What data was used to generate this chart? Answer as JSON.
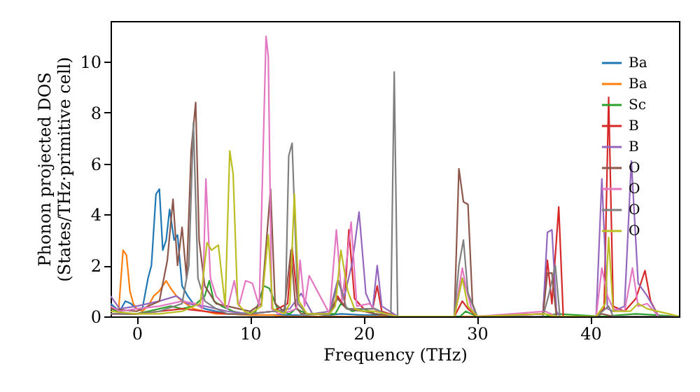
{
  "chart_data": {
    "type": "line",
    "xlabel": "Frequency (THz)",
    "ylabel": "Phonon projected DOS\n(States/THz·primitive cell)",
    "xlim": [
      -2.3,
      47.8
    ],
    "ylim": [
      0,
      11.6
    ],
    "xticks": [
      0,
      10,
      20,
      30,
      40
    ],
    "yticks": [
      0,
      2,
      4,
      6,
      8,
      10
    ],
    "grid": false,
    "legend": "top right",
    "marker": "none",
    "line_style": "solid",
    "series": [
      {
        "name": "Ba",
        "color": "#1f77b4",
        "x": [
          -2.3,
          -1.5,
          -1,
          -0.5,
          0,
          0.5,
          1,
          1.3,
          1.7,
          2.0,
          2.3,
          2.6,
          2.9,
          3.3,
          3.6,
          4,
          4.5,
          5,
          6,
          7,
          8,
          10,
          12,
          14,
          16,
          18,
          20,
          22,
          23
        ],
        "values": [
          0.5,
          0.2,
          0.6,
          0.5,
          0.3,
          0.3,
          1.5,
          2.0,
          4.8,
          5.0,
          2.6,
          3.0,
          4.2,
          3.0,
          3.2,
          1.2,
          0.8,
          0.5,
          0.3,
          0.2,
          0.1,
          0.05,
          0.05,
          0.05,
          0,
          0.1,
          0.05,
          0.05,
          0
        ]
      },
      {
        "name": "Ba",
        "color": "#ff7f0e",
        "x": [
          -2.3,
          -1.6,
          -1.2,
          -0.9,
          -0.6,
          -0.3,
          0,
          0.5,
          1,
          1.5,
          2,
          2.6,
          3,
          3.5,
          4,
          5,
          6,
          7,
          8,
          10,
          12,
          13,
          47.8
        ],
        "values": [
          0.4,
          0.2,
          2.6,
          2.4,
          1.0,
          0.5,
          0.3,
          0.2,
          0.4,
          0.8,
          1.0,
          1.4,
          1.1,
          0.8,
          0.6,
          0.3,
          0.2,
          0.1,
          0.1,
          0.05,
          0.05,
          0,
          0
        ]
      },
      {
        "name": "Sc",
        "color": "#2ca02c",
        "x": [
          -2.3,
          -1,
          0,
          1,
          2,
          3,
          4,
          5,
          5.5,
          6,
          6.4,
          6.8,
          7.5,
          8.5,
          9.5,
          10.5,
          11.2,
          11.7,
          12.5,
          13.5,
          14,
          15,
          17.5,
          18,
          19,
          20,
          21,
          23,
          28.5,
          29,
          30,
          36,
          37,
          41,
          44,
          47.8
        ],
        "values": [
          0.3,
          0.1,
          0.1,
          0.2,
          0.3,
          0.4,
          0.3,
          0.4,
          0.6,
          0.8,
          1.4,
          0.6,
          0.4,
          0.2,
          0.1,
          0.2,
          1.2,
          1.1,
          0.2,
          0.1,
          0.3,
          0.1,
          0.1,
          0.5,
          0.2,
          0.3,
          0.1,
          0,
          0,
          0.2,
          0,
          0,
          0.1,
          0,
          0.1,
          0
        ]
      },
      {
        "name": "B",
        "color": "#d62728",
        "x": [
          -2.3,
          0,
          2,
          4,
          6,
          8,
          10,
          12,
          13.3,
          13.7,
          14.2,
          15,
          17,
          17.7,
          18.3,
          18.7,
          19.2,
          20,
          20.8,
          21.2,
          21.6,
          23,
          28,
          28.7,
          29.2,
          30,
          35.8,
          36.2,
          36.6,
          37.2,
          37.6,
          40.5,
          41.2,
          41.6,
          42,
          43,
          44,
          44.8,
          45.3,
          46,
          47.8
        ],
        "values": [
          0.1,
          0.1,
          0.2,
          0.3,
          0.2,
          0.1,
          0.1,
          0.2,
          0.5,
          2.7,
          0.5,
          0.1,
          0.1,
          0.8,
          0.4,
          3.4,
          0.7,
          0.3,
          0.3,
          1.2,
          0.2,
          0,
          0,
          0.6,
          0.3,
          0,
          0.1,
          2.2,
          0.5,
          4.3,
          0,
          0,
          0.3,
          8.6,
          0.4,
          0.2,
          0.7,
          1.8,
          0.6,
          0,
          0
        ]
      },
      {
        "name": "B",
        "color": "#9467bd",
        "x": [
          -2.3,
          -1.5,
          0,
          2,
          3.5,
          4.5,
          6,
          8,
          10,
          12,
          13.5,
          14.5,
          15.5,
          17,
          17.7,
          18.3,
          19,
          19.6,
          20.2,
          20.8,
          21.2,
          21.6,
          23,
          28,
          28.7,
          29.3,
          30,
          35.8,
          36.2,
          36.6,
          37,
          37.3,
          40.5,
          41,
          41.5,
          42,
          43,
          43.6,
          44.2,
          45,
          46,
          47.8
        ],
        "values": [
          0.8,
          0.3,
          0.4,
          0.6,
          0.8,
          0.5,
          0.4,
          0.2,
          0.1,
          0.2,
          0.3,
          0.9,
          0.1,
          0.2,
          1.4,
          0.8,
          2.1,
          4.1,
          0.9,
          0.3,
          2.0,
          0.4,
          0,
          0,
          1.5,
          0.8,
          0,
          0,
          3.3,
          3.4,
          0.2,
          0,
          0,
          5.4,
          0.3,
          0.2,
          0.4,
          6.1,
          1.3,
          0.8,
          0,
          0
        ]
      },
      {
        "name": "O",
        "color": "#8c564b",
        "x": [
          -2.3,
          0,
          1,
          2,
          2.7,
          3.2,
          3.6,
          4.0,
          4.4,
          4.8,
          5.2,
          5.5,
          6,
          7,
          8,
          9,
          10,
          11,
          11.8,
          12.2,
          13,
          13.6,
          14,
          14.5,
          17,
          17.7,
          18.5,
          20,
          21,
          23,
          28,
          28.4,
          28.8,
          29.2,
          29.6,
          30,
          35.8,
          36.2,
          36.6,
          37,
          40.5,
          41,
          42,
          44,
          47.8
        ],
        "values": [
          0.3,
          0.2,
          0.4,
          0.6,
          2.2,
          4.6,
          2.0,
          3.5,
          1.5,
          6.5,
          8.4,
          3.0,
          1.2,
          0.5,
          0.4,
          0.3,
          0.2,
          0.5,
          5.0,
          0.5,
          0.2,
          2.6,
          0.4,
          0.1,
          0.1,
          0.7,
          0.3,
          0.2,
          0.1,
          0,
          0,
          5.8,
          4.5,
          4.4,
          0.5,
          0,
          0,
          1.7,
          1.7,
          0,
          0,
          0.1,
          0,
          0,
          0
        ]
      },
      {
        "name": "O",
        "color": "#e377c2",
        "x": [
          -2.3,
          -1.5,
          0,
          2,
          4,
          5.2,
          5.8,
          6.1,
          6.5,
          7,
          8,
          8.6,
          9,
          9.6,
          10.2,
          10.8,
          11.4,
          11.6,
          11.9,
          12.5,
          13.5,
          14.1,
          14.4,
          14.8,
          15.2,
          17,
          17.6,
          18.1,
          18.9,
          19.4,
          20.5,
          21.2,
          22,
          23,
          28,
          28.7,
          29.1,
          29.5,
          30,
          36,
          37,
          40.5,
          41,
          41.5,
          42,
          43,
          43.7,
          44.2,
          45,
          46,
          47.8
        ],
        "values": [
          0.4,
          0.2,
          0.3,
          0.4,
          0.6,
          0.5,
          0.3,
          5.4,
          1.5,
          0.8,
          0.3,
          1.4,
          0.4,
          1.4,
          1.3,
          0.4,
          11.0,
          10.2,
          0.3,
          0.1,
          0.2,
          0.3,
          2.2,
          0.4,
          1.6,
          0.1,
          3.4,
          0.6,
          3.7,
          0.4,
          0.5,
          0.2,
          0.1,
          0,
          0,
          1.9,
          1.0,
          0.3,
          0,
          0.2,
          0,
          0,
          1.9,
          0.8,
          0.3,
          0.2,
          1.9,
          0.4,
          0.5,
          0,
          0
        ]
      },
      {
        "name": "O",
        "color": "#7f7f7f",
        "x": [
          -2.3,
          0,
          2,
          4,
          4.6,
          5.0,
          5.4,
          6,
          7,
          8,
          10,
          12,
          13.1,
          13.4,
          13.7,
          14.2,
          15,
          17,
          17.8,
          18.5,
          20,
          21,
          22.4,
          22.7,
          23.0,
          23.5,
          28,
          28.4,
          28.8,
          29.2,
          30,
          35.8,
          36.3,
          36.9,
          37.3,
          40.5,
          41.6,
          42,
          47.8
        ],
        "values": [
          0.1,
          0.1,
          0.2,
          0.5,
          2.0,
          7.6,
          1.5,
          0.6,
          0.3,
          0.1,
          0.1,
          0.2,
          0.2,
          6.3,
          6.8,
          0.5,
          0.1,
          0.1,
          1.4,
          0.3,
          0.3,
          0.3,
          0,
          9.6,
          0,
          0,
          0,
          2.0,
          3.0,
          0.9,
          0,
          0,
          0.8,
          2.0,
          0,
          0,
          0.4,
          0,
          0
        ]
      },
      {
        "name": "O",
        "color": "#bcbd22",
        "x": [
          -2.3,
          0,
          2,
          4,
          5,
          5.6,
          6.2,
          6.6,
          7.2,
          7.8,
          8.2,
          8.5,
          8.9,
          9.5,
          10,
          11,
          11.6,
          12,
          13,
          13.5,
          13.9,
          14.3,
          15,
          17,
          17.5,
          18.0,
          18.6,
          19.2,
          20,
          21,
          23,
          28,
          28.7,
          29.2,
          30,
          36,
          37,
          40.5,
          41.3,
          41.6,
          42,
          43.5,
          44.2,
          45,
          47.8
        ],
        "values": [
          0.2,
          0.1,
          0.1,
          0.2,
          0.4,
          0.5,
          2.9,
          2.6,
          2.8,
          0.4,
          6.5,
          5.6,
          0.5,
          0.2,
          0.1,
          0.4,
          3.2,
          0.3,
          0.1,
          0.5,
          4.8,
          0.6,
          0.1,
          0.1,
          0.4,
          2.6,
          1.0,
          0.3,
          0.2,
          0.2,
          0,
          0,
          1.5,
          0.4,
          0,
          0.1,
          0,
          0,
          0.5,
          3.1,
          0.2,
          0.2,
          0.5,
          0.3,
          0
        ]
      }
    ]
  }
}
